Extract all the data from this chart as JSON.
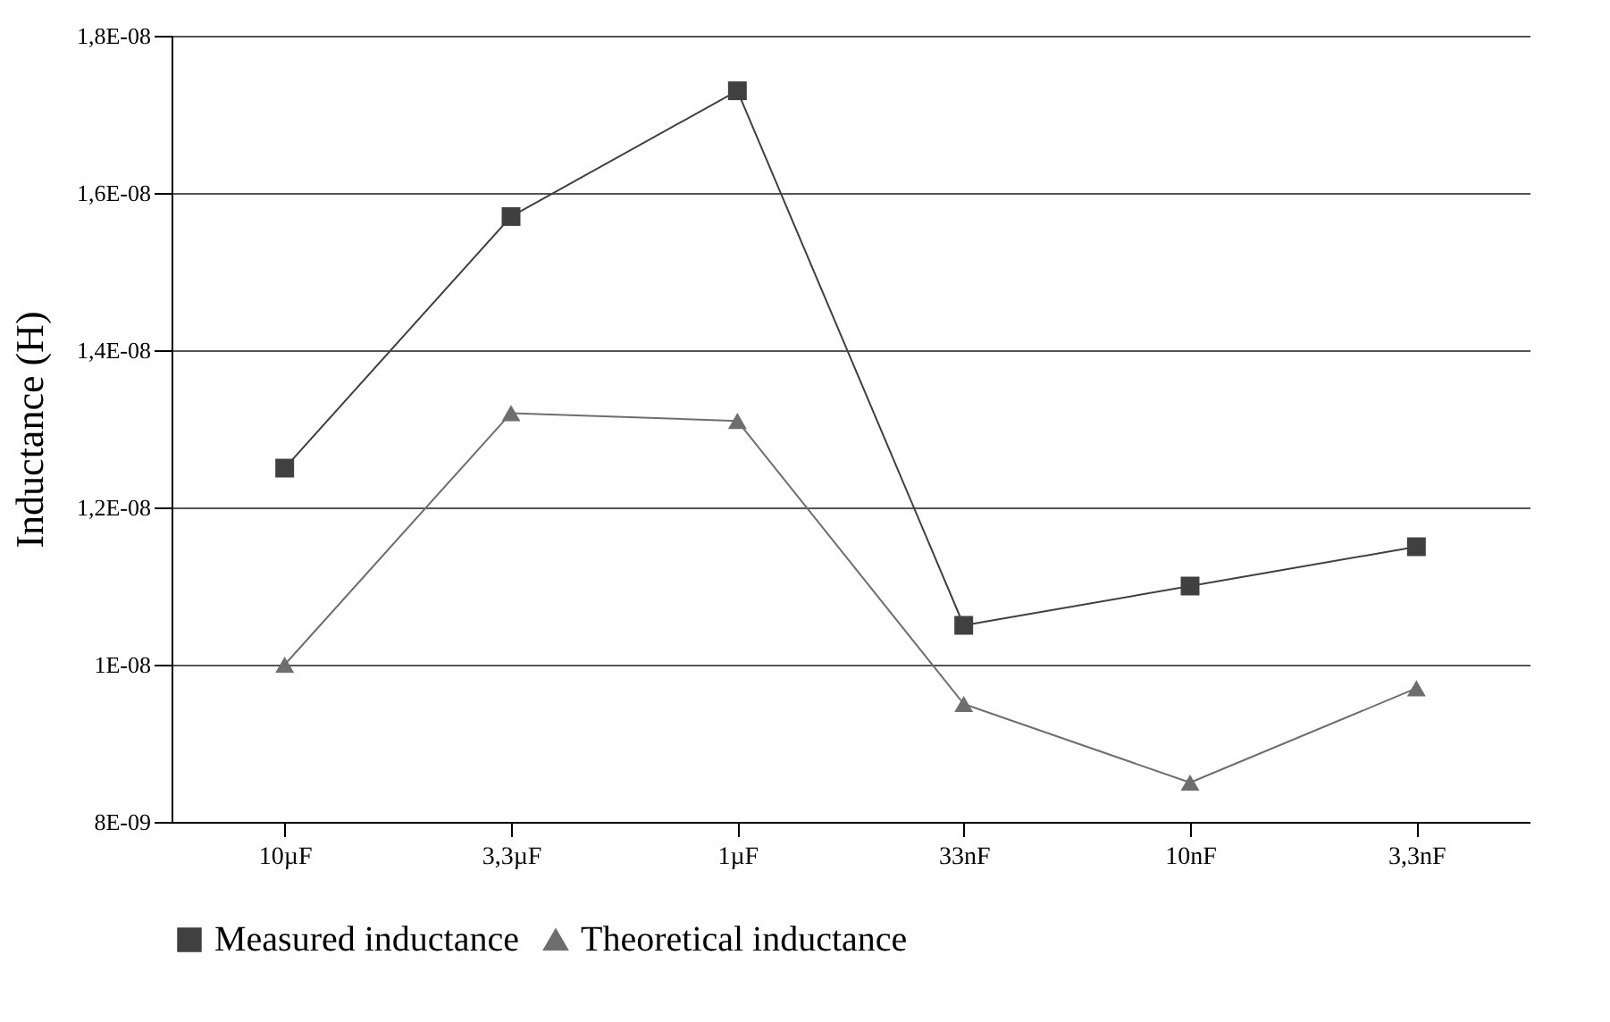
{
  "chart_data": {
    "type": "line",
    "ylabel": "Inductance (H)",
    "categories": [
      "10µF",
      "3,3µF",
      "1µF",
      "33nF",
      "10nF",
      "3,3nF"
    ],
    "series": [
      {
        "name": "Measured inductance",
        "color": "#404040",
        "marker": "square",
        "values": [
          1.25e-08,
          1.57e-08,
          1.73e-08,
          1.05e-08,
          1.1e-08,
          1.15e-08
        ]
      },
      {
        "name": "Theoretical inductance",
        "color": "#6e6e6e",
        "marker": "triangle",
        "values": [
          1e-08,
          1.32e-08,
          1.31e-08,
          9.5e-09,
          8.5e-09,
          9.7e-09
        ]
      }
    ],
    "ylim": [
      8e-09,
      1.8e-08
    ],
    "yticks": [
      {
        "value": 8e-09,
        "label": "8E-09"
      },
      {
        "value": 1e-08,
        "label": "1E-08"
      },
      {
        "value": 1.2e-08,
        "label": "1,2E-08"
      },
      {
        "value": 1.4e-08,
        "label": "1,4E-08"
      },
      {
        "value": 1.6e-08,
        "label": "1,6E-08"
      },
      {
        "value": 1.8e-08,
        "label": "1,8E-08"
      }
    ],
    "grid": "y",
    "legend": "bottom",
    "line_style": "solid"
  }
}
